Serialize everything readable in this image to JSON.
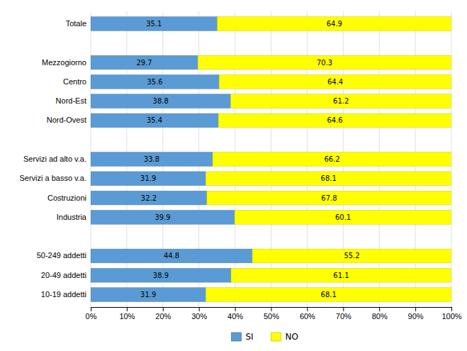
{
  "chart_data": {
    "type": "bar",
    "orientation": "horizontal",
    "stacked": true,
    "data_labels": true,
    "grid": true,
    "legend": "bottom",
    "categories": [
      "Totale",
      null,
      "Mezzogiorno",
      "Centro",
      "Nord-Est",
      "Nord-Ovest",
      null,
      "Servizi ad alto v.a.",
      "Servizi a basso v.a.",
      "Costruzioni",
      "Industria",
      null,
      "50-249 addetti",
      "20-49 addetti",
      "10-19 addetti"
    ],
    "series": [
      {
        "name": "SI",
        "color": "#5B9BD5",
        "values": [
          35.1,
          null,
          29.7,
          35.6,
          38.8,
          35.4,
          null,
          33.8,
          31.9,
          32.2,
          39.9,
          null,
          44.8,
          38.9,
          31.9
        ]
      },
      {
        "name": "NO",
        "color": "#FFFF00",
        "values": [
          64.9,
          null,
          70.3,
          64.4,
          61.2,
          64.6,
          null,
          66.2,
          68.1,
          67.8,
          60.1,
          null,
          55.2,
          61.1,
          68.1
        ]
      }
    ],
    "xlim": [
      0,
      100
    ],
    "xticks": [
      {
        "value": 0,
        "label": "0%"
      },
      {
        "value": 10,
        "label": "10%"
      },
      {
        "value": 20,
        "label": "20%"
      },
      {
        "value": 30,
        "label": "30%"
      },
      {
        "value": 40,
        "label": "40%"
      },
      {
        "value": 50,
        "label": "50%"
      },
      {
        "value": 60,
        "label": "60%"
      },
      {
        "value": 70,
        "label": "70%"
      },
      {
        "value": 80,
        "label": "80%"
      },
      {
        "value": 90,
        "label": "90%"
      },
      {
        "value": 100,
        "label": "100%"
      }
    ]
  }
}
